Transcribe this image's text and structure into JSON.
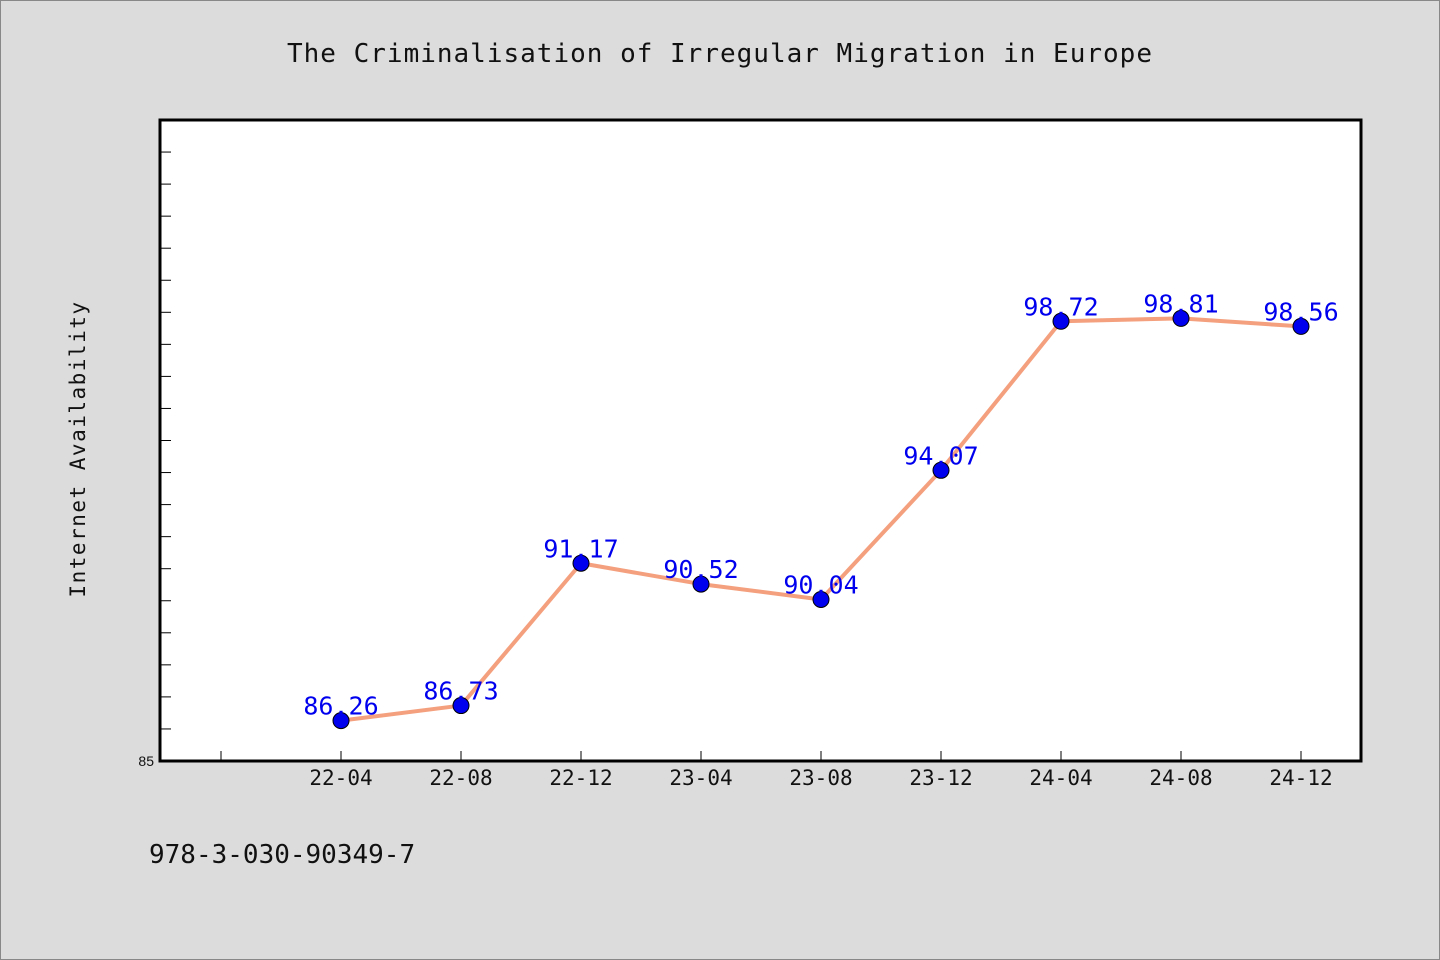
{
  "chart_data": {
    "type": "line",
    "title": "The Criminalisation of Irregular Migration in Europe",
    "xlabel": "",
    "ylabel": "Internet Availability",
    "categories": [
      "22-04",
      "22-08",
      "22-12",
      "23-04",
      "23-08",
      "23-12",
      "24-04",
      "24-08",
      "24-12"
    ],
    "series": [
      {
        "values": [
          86.26,
          86.73,
          91.17,
          90.52,
          90.04,
          94.07,
          98.72,
          98.81,
          98.56
        ],
        "labels": [
          "86.26",
          "86.73",
          "91.17",
          "90.52",
          "90.04",
          "94.07",
          "98.72",
          "98.81",
          "98.56"
        ],
        "line_color": "#f4a07e",
        "marker_color": "#0000ee"
      }
    ],
    "ylim": [
      85,
      105
    ],
    "y_tick_labels": [
      "85"
    ],
    "grid": false,
    "legend": "none"
  },
  "footnote": "978-3-030-90349-7",
  "colors": {
    "background": "#dcdcdc",
    "plot_background": "#ffffff",
    "line": "#f4a07e",
    "marker": "#0000ee",
    "label": "#0000ee"
  }
}
